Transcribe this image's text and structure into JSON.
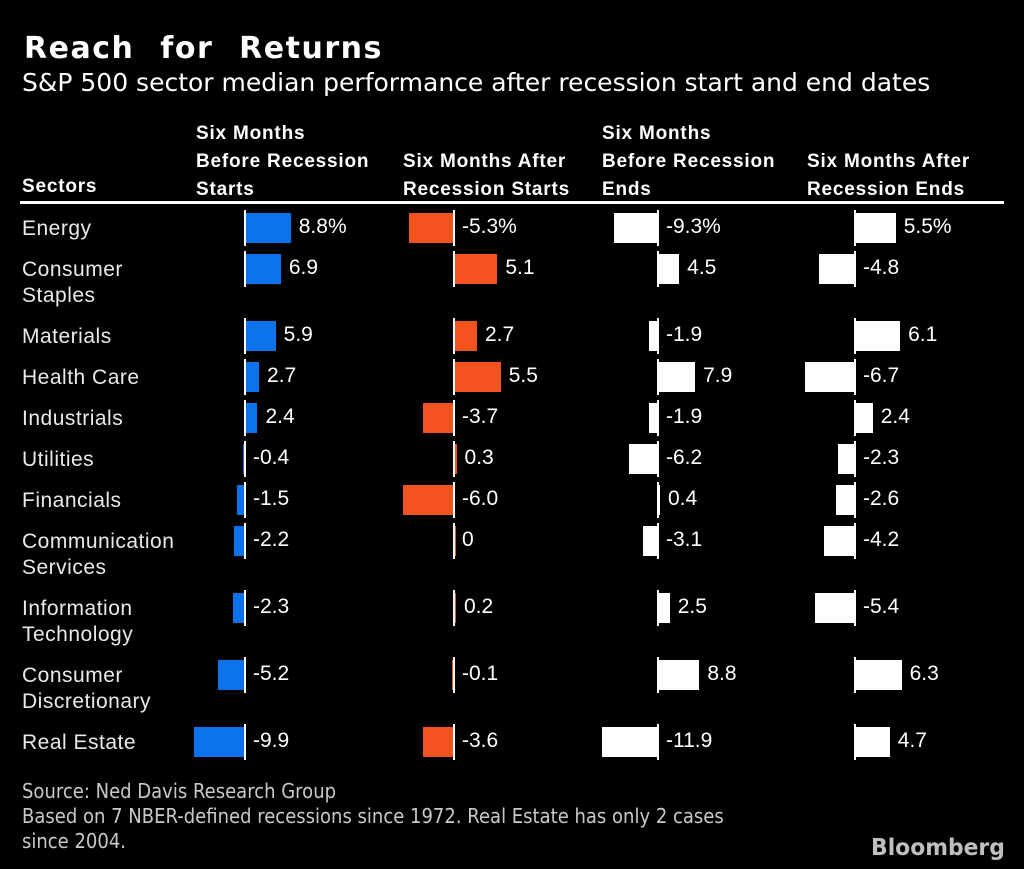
{
  "title": "Reach for Returns",
  "subtitle": "S&P 500 sector median performance after recession start and end dates",
  "chart_data": {
    "type": "bar",
    "orientation": "horizontal-diverging",
    "unit": "%",
    "sectors_label": "Sectors",
    "legend_position": "none",
    "grid": false,
    "columns": [
      {
        "id": "six-months-before-recession-starts",
        "header_lines": [
          "Six Months",
          "Before Recession",
          "Starts"
        ],
        "bar_color": "#0d73ec"
      },
      {
        "id": "six-months-after-recession-starts",
        "header_lines": [
          "Six Months After",
          "Recession Starts"
        ],
        "bar_color": "#f4521e"
      },
      {
        "id": "six-months-before-recession-ends",
        "header_lines": [
          "Six Months",
          "Before Recession",
          "Ends"
        ],
        "bar_color": "#ffffff"
      },
      {
        "id": "six-months-after-recession-ends",
        "header_lines": [
          "Six Months After",
          "Recession Ends"
        ],
        "bar_color": "#ffffff"
      }
    ],
    "rows": [
      {
        "sector_lines": [
          "Energy"
        ],
        "values": [
          8.8,
          -5.3,
          -9.3,
          5.5
        ],
        "labels": [
          "8.8%",
          "-5.3%",
          "-9.3%",
          "5.5%"
        ]
      },
      {
        "sector_lines": [
          "Consumer",
          "Staples"
        ],
        "values": [
          6.9,
          5.1,
          4.5,
          -4.8
        ],
        "labels": [
          "6.9",
          "5.1",
          "4.5",
          "-4.8"
        ]
      },
      {
        "sector_lines": [
          "Materials"
        ],
        "values": [
          5.9,
          2.7,
          -1.9,
          6.1
        ],
        "labels": [
          "5.9",
          "2.7",
          "-1.9",
          "6.1"
        ]
      },
      {
        "sector_lines": [
          "Health Care"
        ],
        "values": [
          2.7,
          5.5,
          7.9,
          -6.7
        ],
        "labels": [
          "2.7",
          "5.5",
          "7.9",
          "-6.7"
        ]
      },
      {
        "sector_lines": [
          "Industrials"
        ],
        "values": [
          2.4,
          -3.7,
          -1.9,
          2.4
        ],
        "labels": [
          "2.4",
          "-3.7",
          "-1.9",
          "2.4"
        ]
      },
      {
        "sector_lines": [
          "Utilities"
        ],
        "values": [
          -0.4,
          0.3,
          -6.2,
          -2.3
        ],
        "labels": [
          "-0.4",
          "0.3",
          "-6.2",
          "-2.3"
        ]
      },
      {
        "sector_lines": [
          "Financials"
        ],
        "values": [
          -1.5,
          -6.0,
          0.4,
          -2.6
        ],
        "labels": [
          "-1.5",
          "-6.0",
          "0.4",
          "-2.6"
        ]
      },
      {
        "sector_lines": [
          "Communication",
          "Services"
        ],
        "values": [
          -2.2,
          0,
          -3.1,
          -4.2
        ],
        "labels": [
          "-2.2",
          "0",
          "-3.1",
          "-4.2"
        ]
      },
      {
        "sector_lines": [
          "Information",
          "Technology"
        ],
        "values": [
          -2.3,
          0.2,
          2.5,
          -5.4
        ],
        "labels": [
          "-2.3",
          "0.2",
          "2.5",
          "-5.4"
        ]
      },
      {
        "sector_lines": [
          "Consumer",
          "Discretionary"
        ],
        "values": [
          -5.2,
          -0.1,
          8.8,
          6.3
        ],
        "labels": [
          "-5.2",
          "-0.1",
          "8.8",
          "6.3"
        ]
      },
      {
        "sector_lines": [
          "Real Estate"
        ],
        "values": [
          -9.9,
          -3.6,
          -11.9,
          4.7
        ],
        "labels": [
          "-9.9",
          "-3.6",
          "-11.9",
          "4.7"
        ]
      }
    ]
  },
  "footer": {
    "source": "Source: Ned Davis Research Group",
    "note_lines": [
      "Based on 7 NBER-defined recessions since 1972. Real Estate has only 2 cases",
      "since 2004."
    ],
    "brand": "Bloomberg"
  },
  "colors": {
    "background": "#000000",
    "bar_blue": "#0d73ec",
    "bar_orange": "#f4521e",
    "bar_white": "#ffffff",
    "baseline_tick": "#ffffff",
    "title_text": "#ffffff",
    "sector_text": "#e9e9e9",
    "footer_text": "#c9c9c9",
    "brand_text": "#bfbfbf"
  }
}
